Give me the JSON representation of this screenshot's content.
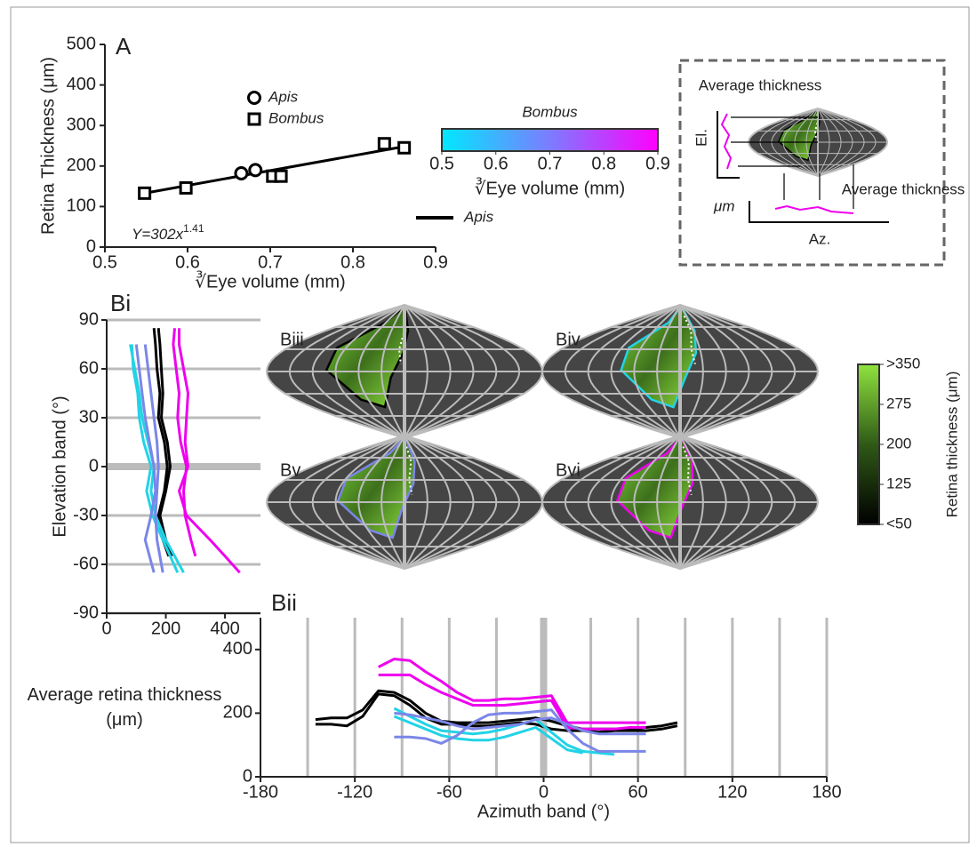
{
  "chart_data": [
    {
      "type": "scatter",
      "panel": "A",
      "xlabel": "∛Eye volume (mm)",
      "ylabel": "Retina Thickness (μm)",
      "xlim": [
        0.5,
        0.9
      ],
      "xticks": [
        0.5,
        0.6,
        0.7,
        0.8,
        0.9
      ],
      "ylim": [
        0,
        500
      ],
      "yticks": [
        0,
        100,
        200,
        300,
        400,
        500
      ],
      "series": [
        {
          "name": "Apis",
          "marker": "circle",
          "color": "#000000",
          "x": [
            0.665,
            0.682
          ],
          "values": [
            182,
            190
          ]
        },
        {
          "name": "Bombus",
          "marker": "square",
          "color": "#000000",
          "x": [
            0.548,
            0.598,
            0.703,
            0.713,
            0.838,
            0.862
          ],
          "values": [
            133,
            146,
            175,
            175,
            255,
            245
          ]
        }
      ],
      "fit": {
        "color": "#000000",
        "x": [
          0.548,
          0.862
        ],
        "values": [
          133,
          248
        ]
      },
      "annotation": "Y=302x",
      "annotation_exponent": "1.41"
    },
    {
      "type": "line",
      "orientation": "horizontal",
      "panel": "Bi",
      "ylabel": "Elevation band (°)",
      "xlim": [
        0,
        520
      ],
      "xticks": [
        0,
        200,
        400
      ],
      "ylim": [
        -90,
        90
      ],
      "yticks": [
        -90,
        -60,
        -30,
        0,
        30,
        60,
        90
      ],
      "grid": true,
      "y": [
        85,
        75,
        60,
        45,
        30,
        15,
        0,
        -15,
        -30,
        -45,
        -55,
        -65
      ],
      "series": [
        {
          "color": "#000000",
          "values": [
            160,
            165,
            170,
            180,
            175,
            195,
            205,
            195,
            175,
            190,
            210,
            null
          ]
        },
        {
          "color": "#000000",
          "values": [
            175,
            180,
            185,
            190,
            185,
            205,
            215,
            200,
            180,
            200,
            220,
            null
          ]
        },
        {
          "color": "#ee00ee",
          "values": [
            230,
            225,
            235,
            245,
            240,
            250,
            270,
            260,
            265,
            285,
            300,
            null
          ]
        },
        {
          "color": "#ee00ee",
          "values": [
            245,
            245,
            260,
            275,
            270,
            265,
            275,
            245,
            270,
            350,
            400,
            450
          ]
        },
        {
          "color": "#22d3e6",
          "values": [
            null,
            85,
            90,
            105,
            110,
            125,
            150,
            135,
            155,
            190,
            215,
            240
          ]
        },
        {
          "color": "#22d3e6",
          "values": [
            null,
            80,
            95,
            110,
            120,
            140,
            160,
            150,
            165,
            200,
            230,
            260
          ]
        },
        {
          "color": "#7b86e8",
          "values": [
            null,
            100,
            110,
            120,
            130,
            145,
            160,
            165,
            150,
            130,
            145,
            160
          ]
        },
        {
          "color": "#7b86e8",
          "values": [
            null,
            130,
            140,
            150,
            160,
            170,
            175,
            170,
            165,
            170,
            180,
            190
          ]
        }
      ]
    },
    {
      "type": "line",
      "panel": "Bii",
      "xlabel": "Azimuth band (°)",
      "ylabel": "Average retina thickness (μm)",
      "xlim": [
        -180,
        180
      ],
      "xticks": [
        -180,
        -120,
        -60,
        0,
        60,
        120,
        180
      ],
      "xgrid": [
        -150,
        -120,
        -90,
        -60,
        -30,
        0,
        30,
        60,
        90,
        120,
        150,
        180
      ],
      "ylim": [
        0,
        500
      ],
      "yticks": [
        0,
        200,
        400
      ],
      "x": [
        -145,
        -135,
        -125,
        -115,
        -105,
        -95,
        -85,
        -75,
        -65,
        -55,
        -45,
        -35,
        -25,
        -15,
        -5,
        5,
        15,
        25,
        35,
        45,
        55,
        65,
        75,
        85
      ],
      "series": [
        {
          "color": "#000000",
          "values": [
            180,
            185,
            185,
            210,
            270,
            265,
            240,
            200,
            175,
            170,
            170,
            170,
            175,
            180,
            185,
            175,
            160,
            150,
            150,
            150,
            150,
            155,
            160,
            170
          ]
        },
        {
          "color": "#000000",
          "values": [
            165,
            165,
            160,
            190,
            260,
            255,
            225,
            185,
            165,
            165,
            160,
            160,
            165,
            170,
            165,
            150,
            145,
            145,
            140,
            145,
            145,
            145,
            150,
            160
          ]
        },
        {
          "color": "#ee00ee",
          "values": [
            null,
            null,
            null,
            null,
            345,
            370,
            365,
            330,
            300,
            265,
            240,
            240,
            245,
            245,
            250,
            255,
            170,
            170,
            170,
            170,
            170,
            170,
            null,
            null
          ]
        },
        {
          "color": "#ee00ee",
          "values": [
            null,
            null,
            null,
            null,
            320,
            320,
            320,
            290,
            265,
            245,
            225,
            225,
            225,
            230,
            235,
            240,
            155,
            150,
            150,
            150,
            155,
            155,
            null,
            null
          ]
        },
        {
          "color": "#22d3e6",
          "values": [
            null,
            null,
            null,
            null,
            null,
            215,
            190,
            165,
            145,
            140,
            135,
            140,
            150,
            165,
            180,
            140,
            100,
            80,
            75,
            70,
            null,
            null,
            null,
            null
          ]
        },
        {
          "color": "#22d3e6",
          "values": [
            null,
            null,
            null,
            null,
            null,
            190,
            170,
            150,
            130,
            120,
            115,
            115,
            125,
            140,
            155,
            120,
            85,
            75,
            null,
            null,
            null,
            null,
            null,
            null
          ]
        },
        {
          "color": "#7b86e8",
          "values": [
            null,
            null,
            null,
            null,
            null,
            125,
            125,
            120,
            105,
            130,
            170,
            195,
            200,
            200,
            205,
            210,
            150,
            105,
            80,
            80,
            80,
            80,
            null,
            null
          ]
        },
        {
          "color": "#7b86e8",
          "values": [
            null,
            null,
            null,
            null,
            null,
            200,
            195,
            185,
            175,
            160,
            150,
            155,
            160,
            165,
            180,
            185,
            165,
            145,
            135,
            135,
            135,
            135,
            null,
            null
          ]
        }
      ]
    }
  ],
  "bombus_colorbar": {
    "title": "Bombus",
    "label": "∛Eye volume (mm)",
    "lim": [
      0.5,
      0.9
    ],
    "ticks": [
      0.5,
      0.6,
      0.7,
      0.8,
      0.9
    ],
    "colors": [
      "#00e8ff",
      "#7c7cff",
      "#ff00ff"
    ]
  },
  "apis_legend": "Apis",
  "inset": {
    "top_label": "Average thickness",
    "right_label": "Average thickness",
    "el_label": "El.",
    "unit_label": "μm",
    "az_label": "Az."
  },
  "maps": {
    "labels": [
      "Biii",
      "Biv",
      "Bv",
      "Bvi"
    ],
    "outline_colors": [
      "#000000",
      "#22d3e6",
      "#7b86e8",
      "#ee00ee"
    ]
  },
  "thickness_colorbar": {
    "label": "Retina thickness (μm)",
    "lim": [
      50,
      350
    ],
    "ticks": [
      {
        "value": 50,
        "label": "<50"
      },
      125,
      200,
      275,
      {
        "value": 350,
        "label": ">350"
      }
    ],
    "colors": [
      "#000000",
      "#2f5a16",
      "#8fe33e"
    ]
  }
}
